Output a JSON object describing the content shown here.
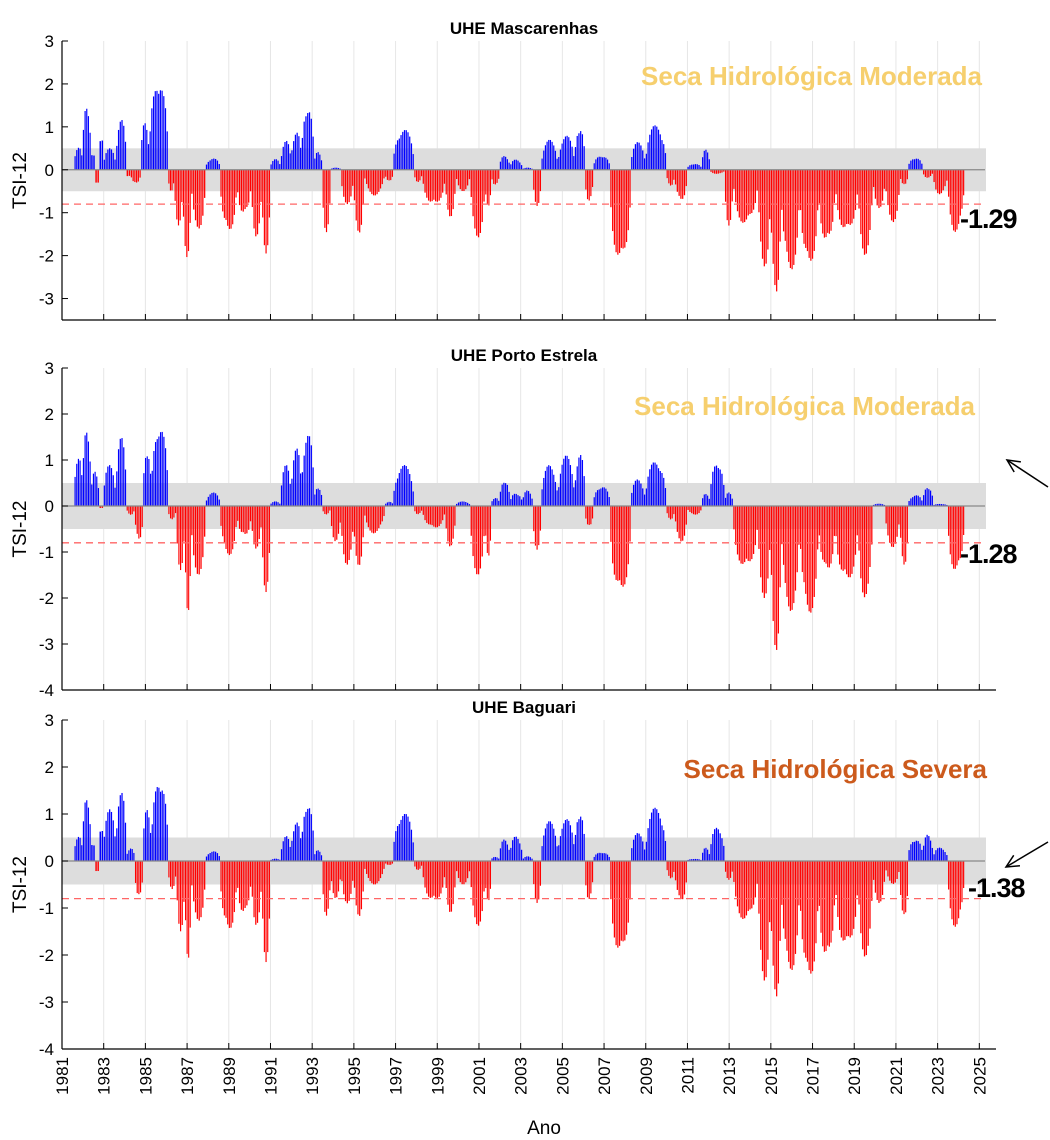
{
  "colors": {
    "positive": "#0000ff",
    "negative": "#ff0000",
    "band": "#dddddd",
    "threshold": "#ff6666",
    "moderate": "#f6cf6e",
    "severe": "#cc5a1c",
    "vgrid": "#e6e6e6"
  },
  "chart_data": [
    {
      "type": "bar",
      "title": "UHE Mascarenhas",
      "ylabel": "TSI-12",
      "ylim": [
        -3.5,
        3
      ],
      "yticks": [
        3,
        2,
        1,
        0,
        -1,
        -2,
        -3
      ],
      "status_label": "Seca Hidrológica Moderada",
      "status_level": "moderate",
      "last_value": "-1.29",
      "normal_band": [
        -0.5,
        0.5
      ],
      "threshold": -0.8,
      "series": {
        "segments": [
          [
            1981.6,
            1982.0,
            0.6
          ],
          [
            1982.0,
            1982.4,
            1.65
          ],
          [
            1982.4,
            1982.6,
            0.4
          ],
          [
            1982.6,
            1982.8,
            -0.35
          ],
          [
            1982.8,
            1983.0,
            0.8
          ],
          [
            1983.0,
            1983.6,
            0.5
          ],
          [
            1983.6,
            1984.1,
            1.2
          ],
          [
            1984.1,
            1984.3,
            -0.2
          ],
          [
            1984.3,
            1984.8,
            -0.35
          ],
          [
            1984.8,
            1985.2,
            1.2
          ],
          [
            1985.2,
            1986.1,
            2.15
          ],
          [
            1986.1,
            1986.4,
            -0.5
          ],
          [
            1986.4,
            1986.8,
            -1.3
          ],
          [
            1986.8,
            1987.2,
            -2.1
          ],
          [
            1987.2,
            1987.9,
            -1.4
          ],
          [
            1987.9,
            1988.6,
            0.28
          ],
          [
            1988.6,
            1989.4,
            -1.5
          ],
          [
            1989.4,
            1990.1,
            -1.1
          ],
          [
            1990.1,
            1990.6,
            -1.6
          ],
          [
            1990.6,
            1991.0,
            -1.95
          ],
          [
            1991.0,
            1991.5,
            0.25
          ],
          [
            1991.5,
            1992.0,
            0.7
          ],
          [
            1992.0,
            1992.5,
            0.95
          ],
          [
            1992.5,
            1993.1,
            1.55
          ],
          [
            1993.1,
            1993.5,
            0.45
          ],
          [
            1993.5,
            1993.9,
            -1.5
          ],
          [
            1993.9,
            1994.4,
            0.05
          ],
          [
            1994.4,
            1995.0,
            -0.8
          ],
          [
            1995.0,
            1995.5,
            -1.5
          ],
          [
            1995.5,
            1996.5,
            -0.6
          ],
          [
            1996.5,
            1996.9,
            -0.3
          ],
          [
            1996.9,
            1997.9,
            0.97
          ],
          [
            1997.9,
            1998.3,
            -0.3
          ],
          [
            1998.3,
            1999.4,
            -0.85
          ],
          [
            1999.4,
            1999.9,
            -1.1
          ],
          [
            1999.9,
            2000.6,
            -0.5
          ],
          [
            2000.6,
            2001.3,
            -1.6
          ],
          [
            2001.3,
            2001.6,
            -1.0
          ],
          [
            2001.6,
            2002.0,
            -0.4
          ],
          [
            2002.0,
            2002.5,
            0.35
          ],
          [
            2002.5,
            2003.1,
            0.25
          ],
          [
            2003.1,
            2003.6,
            0.05
          ],
          [
            2003.6,
            2004.0,
            -0.85
          ],
          [
            2004.0,
            2004.8,
            0.7
          ],
          [
            2004.8,
            2005.6,
            0.8
          ],
          [
            2005.6,
            2006.1,
            1.05
          ],
          [
            2006.1,
            2006.5,
            -0.8
          ],
          [
            2006.5,
            2007.3,
            0.35
          ],
          [
            2007.3,
            2008.3,
            -2.2
          ],
          [
            2008.3,
            2009.0,
            0.65
          ],
          [
            2009.0,
            2010.0,
            1.05
          ],
          [
            2010.0,
            2010.4,
            -0.4
          ],
          [
            2010.4,
            2011.0,
            -0.75
          ],
          [
            2011.0,
            2011.7,
            0.15
          ],
          [
            2011.7,
            2012.1,
            0.5
          ],
          [
            2012.1,
            2012.8,
            -0.1
          ],
          [
            2012.8,
            2013.2,
            -1.3
          ],
          [
            2013.2,
            2014.4,
            -1.3
          ],
          [
            2014.4,
            2015.0,
            -2.3
          ],
          [
            2015.0,
            2015.5,
            -3.1
          ],
          [
            2015.5,
            2016.4,
            -2.4
          ],
          [
            2016.4,
            2017.3,
            -2.3
          ],
          [
            2017.3,
            2018.1,
            -1.8
          ],
          [
            2018.1,
            2019.2,
            -1.5
          ],
          [
            2019.2,
            2019.9,
            -2.0
          ],
          [
            2019.9,
            2020.5,
            -0.9
          ],
          [
            2020.5,
            2021.2,
            -1.25
          ],
          [
            2021.2,
            2021.6,
            -0.4
          ],
          [
            2021.6,
            2022.3,
            0.3
          ],
          [
            2022.3,
            2022.8,
            -0.2
          ],
          [
            2022.8,
            2023.5,
            -0.6
          ],
          [
            2023.5,
            2024.3,
            -1.5
          ]
        ]
      }
    },
    {
      "type": "bar",
      "title": "UHE Porto Estrela",
      "ylabel": "TSI-12",
      "ylim": [
        -4,
        3
      ],
      "yticks": [
        3,
        2,
        1,
        0,
        -1,
        -2,
        -3,
        -4
      ],
      "status_label": "Seca Hidrológica Moderada",
      "status_level": "moderate",
      "last_value": "-1.28",
      "normal_band": [
        -0.5,
        0.5
      ],
      "threshold": -0.8,
      "series": {
        "segments": [
          [
            1981.6,
            1982.0,
            1.2
          ],
          [
            1982.0,
            1982.4,
            1.85
          ],
          [
            1982.4,
            1982.8,
            0.8
          ],
          [
            1982.8,
            1983.0,
            -0.05
          ],
          [
            1983.0,
            1983.6,
            0.9
          ],
          [
            1983.6,
            1984.1,
            1.5
          ],
          [
            1984.1,
            1984.5,
            -0.2
          ],
          [
            1984.5,
            1984.9,
            -0.8
          ],
          [
            1984.9,
            1985.3,
            1.3
          ],
          [
            1985.3,
            1986.1,
            1.8
          ],
          [
            1986.1,
            1986.5,
            -0.3
          ],
          [
            1986.5,
            1986.9,
            -1.4
          ],
          [
            1986.9,
            1987.2,
            -2.35
          ],
          [
            1987.2,
            1987.9,
            -1.5
          ],
          [
            1987.9,
            1988.6,
            0.3
          ],
          [
            1988.6,
            1989.4,
            -1.1
          ],
          [
            1989.4,
            1990.1,
            -0.7
          ],
          [
            1990.1,
            1990.6,
            -1.0
          ],
          [
            1990.6,
            1991.0,
            -1.9
          ],
          [
            1991.0,
            1991.5,
            0.1
          ],
          [
            1991.5,
            1992.0,
            0.9
          ],
          [
            1992.0,
            1992.5,
            1.3
          ],
          [
            1992.5,
            1993.1,
            1.65
          ],
          [
            1993.1,
            1993.5,
            0.45
          ],
          [
            1993.5,
            1993.9,
            -0.2
          ],
          [
            1993.9,
            1994.4,
            -0.8
          ],
          [
            1994.4,
            1995.0,
            -1.3
          ],
          [
            1995.0,
            1995.5,
            -1.3
          ],
          [
            1995.5,
            1996.5,
            -0.6
          ],
          [
            1996.5,
            1996.9,
            0.1
          ],
          [
            1996.9,
            1997.9,
            0.9
          ],
          [
            1997.9,
            1998.3,
            -0.2
          ],
          [
            1998.3,
            1999.4,
            -0.5
          ],
          [
            1999.4,
            1999.9,
            -0.9
          ],
          [
            1999.9,
            2000.6,
            0.1
          ],
          [
            2000.6,
            2001.3,
            -1.5
          ],
          [
            2001.3,
            2001.6,
            -1.2
          ],
          [
            2001.6,
            2002.0,
            0.2
          ],
          [
            2002.0,
            2002.5,
            0.6
          ],
          [
            2002.5,
            2003.1,
            0.3
          ],
          [
            2003.1,
            2003.6,
            0.35
          ],
          [
            2003.6,
            2004.0,
            -0.95
          ],
          [
            2004.0,
            2004.8,
            0.9
          ],
          [
            2004.8,
            2005.6,
            1.1
          ],
          [
            2005.6,
            2006.1,
            1.2
          ],
          [
            2006.1,
            2006.5,
            -0.5
          ],
          [
            2006.5,
            2007.3,
            0.45
          ],
          [
            2007.3,
            2008.3,
            -1.95
          ],
          [
            2008.3,
            2009.0,
            0.6
          ],
          [
            2009.0,
            2010.0,
            1.0
          ],
          [
            2010.0,
            2010.4,
            -0.3
          ],
          [
            2010.4,
            2011.0,
            -0.8
          ],
          [
            2011.0,
            2011.7,
            -0.2
          ],
          [
            2011.7,
            2012.1,
            0.3
          ],
          [
            2012.1,
            2012.8,
            1.0
          ],
          [
            2012.8,
            2013.2,
            0.3
          ],
          [
            2013.2,
            2014.4,
            -1.4
          ],
          [
            2014.4,
            2015.0,
            -2.0
          ],
          [
            2015.0,
            2015.5,
            -3.25
          ],
          [
            2015.5,
            2016.4,
            -2.3
          ],
          [
            2016.4,
            2017.3,
            -2.4
          ],
          [
            2017.3,
            2018.1,
            -1.5
          ],
          [
            2018.1,
            2019.2,
            -1.7
          ],
          [
            2019.2,
            2019.9,
            -2.05
          ],
          [
            2019.9,
            2020.5,
            0.05
          ],
          [
            2020.5,
            2021.2,
            -0.9
          ],
          [
            2021.2,
            2021.6,
            -1.4
          ],
          [
            2021.6,
            2022.3,
            0.25
          ],
          [
            2022.3,
            2022.8,
            0.45
          ],
          [
            2022.8,
            2023.5,
            0.05
          ],
          [
            2023.5,
            2024.3,
            -1.5
          ]
        ]
      }
    },
    {
      "type": "bar",
      "title": "UHE Baguari",
      "ylabel": "TSI-12",
      "xlabel": "Ano",
      "ylim": [
        -4,
        3
      ],
      "yticks": [
        3,
        2,
        1,
        0,
        -1,
        -2,
        -3,
        -4
      ],
      "status_label": "Seca Hidrológica Severa",
      "status_level": "severe",
      "last_value": "-1.38",
      "normal_band": [
        -0.5,
        0.5
      ],
      "threshold": -0.8,
      "series": {
        "segments": [
          [
            1981.6,
            1982.0,
            0.6
          ],
          [
            1982.0,
            1982.4,
            1.5
          ],
          [
            1982.4,
            1982.6,
            0.4
          ],
          [
            1982.6,
            1982.8,
            -0.25
          ],
          [
            1982.8,
            1983.0,
            0.75
          ],
          [
            1983.0,
            1983.6,
            1.1
          ],
          [
            1983.6,
            1984.1,
            1.5
          ],
          [
            1984.1,
            1984.5,
            0.3
          ],
          [
            1984.5,
            1984.9,
            -0.85
          ],
          [
            1984.9,
            1985.3,
            1.2
          ],
          [
            1985.3,
            1986.1,
            1.8
          ],
          [
            1986.1,
            1986.5,
            -0.6
          ],
          [
            1986.5,
            1986.9,
            -1.5
          ],
          [
            1986.9,
            1987.2,
            -2.2
          ],
          [
            1987.2,
            1987.9,
            -1.3
          ],
          [
            1987.9,
            1988.6,
            0.22
          ],
          [
            1988.6,
            1989.4,
            -1.55
          ],
          [
            1989.4,
            1990.1,
            -1.2
          ],
          [
            1990.1,
            1990.6,
            -1.4
          ],
          [
            1990.6,
            1991.0,
            -2.15
          ],
          [
            1991.0,
            1991.5,
            0.05
          ],
          [
            1991.5,
            1992.0,
            0.55
          ],
          [
            1992.0,
            1992.5,
            0.9
          ],
          [
            1992.5,
            1993.1,
            1.3
          ],
          [
            1993.1,
            1993.5,
            0.25
          ],
          [
            1993.5,
            1993.9,
            -1.2
          ],
          [
            1993.9,
            1994.4,
            -0.8
          ],
          [
            1994.4,
            1995.0,
            -0.9
          ],
          [
            1995.0,
            1995.5,
            -1.2
          ],
          [
            1995.5,
            1996.5,
            -0.5
          ],
          [
            1996.5,
            1996.9,
            -0.1
          ],
          [
            1996.9,
            1997.9,
            1.05
          ],
          [
            1997.9,
            1998.3,
            -0.2
          ],
          [
            1998.3,
            1999.4,
            -0.9
          ],
          [
            1999.4,
            1999.9,
            -1.1
          ],
          [
            1999.9,
            2000.6,
            -0.5
          ],
          [
            2000.6,
            2001.3,
            -1.4
          ],
          [
            2001.3,
            2001.6,
            -1.0
          ],
          [
            2001.6,
            2002.0,
            0.1
          ],
          [
            2002.0,
            2002.5,
            0.5
          ],
          [
            2002.5,
            2003.1,
            0.55
          ],
          [
            2003.1,
            2003.6,
            0.1
          ],
          [
            2003.6,
            2004.0,
            -0.9
          ],
          [
            2004.0,
            2004.8,
            0.85
          ],
          [
            2004.8,
            2005.6,
            0.9
          ],
          [
            2005.6,
            2006.1,
            1.1
          ],
          [
            2006.1,
            2006.5,
            -0.9
          ],
          [
            2006.5,
            2007.3,
            0.2
          ],
          [
            2007.3,
            2008.3,
            -2.05
          ],
          [
            2008.3,
            2009.0,
            0.6
          ],
          [
            2009.0,
            2010.0,
            1.15
          ],
          [
            2010.0,
            2010.4,
            -0.4
          ],
          [
            2010.4,
            2011.0,
            -0.9
          ],
          [
            2011.0,
            2011.7,
            0.05
          ],
          [
            2011.7,
            2012.1,
            0.3
          ],
          [
            2012.1,
            2012.8,
            0.75
          ],
          [
            2012.8,
            2013.2,
            -0.4
          ],
          [
            2013.2,
            2014.4,
            -1.3
          ],
          [
            2014.4,
            2015.0,
            -2.6
          ],
          [
            2015.0,
            2015.5,
            -3.15
          ],
          [
            2015.5,
            2016.4,
            -2.4
          ],
          [
            2016.4,
            2017.3,
            -2.6
          ],
          [
            2017.3,
            2018.1,
            -2.2
          ],
          [
            2018.1,
            2019.2,
            -1.9
          ],
          [
            2019.2,
            2019.9,
            -2.05
          ],
          [
            2019.9,
            2020.5,
            -0.9
          ],
          [
            2020.5,
            2021.2,
            -0.5
          ],
          [
            2021.2,
            2021.6,
            -1.35
          ],
          [
            2021.6,
            2022.3,
            0.5
          ],
          [
            2022.3,
            2022.8,
            0.6
          ],
          [
            2022.8,
            2023.5,
            0.3
          ],
          [
            2023.5,
            2024.3,
            -1.45
          ]
        ]
      }
    }
  ],
  "x_axis": {
    "range": [
      1981,
      2025.8
    ],
    "ticks": [
      "1981",
      "1983",
      "1985",
      "1987",
      "1989",
      "1991",
      "1993",
      "1995",
      "1997",
      "1999",
      "2001",
      "2003",
      "2005",
      "2007",
      "2009",
      "2011",
      "2013",
      "2015",
      "2017",
      "2019",
      "2021",
      "2023",
      "2025"
    ]
  }
}
